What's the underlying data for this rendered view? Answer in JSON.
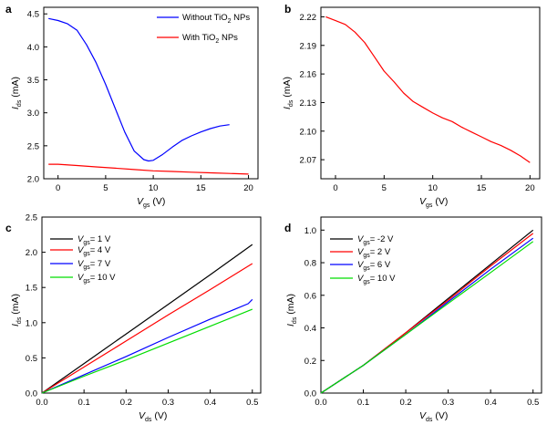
{
  "chart_data": [
    {
      "panel": "a",
      "type": "line",
      "xlabel": "V_gs (V)",
      "ylabel": "I_ds (mA)",
      "xlim": [
        -1.5,
        21
      ],
      "ylim": [
        2.0,
        4.6
      ],
      "xticks": [
        0,
        5,
        10,
        15,
        20
      ],
      "yticks": [
        2.0,
        2.5,
        3.0,
        3.5,
        4.0,
        4.5
      ],
      "legend": "top-right",
      "series": [
        {
          "name": "Without TiO2 NPs",
          "color": "#0000ff",
          "x": [
            -1,
            0,
            1,
            2,
            3,
            4,
            5,
            6,
            7,
            8,
            9,
            9.5,
            10,
            11,
            12,
            13,
            14,
            15,
            16,
            17,
            18
          ],
          "y": [
            4.43,
            4.4,
            4.35,
            4.25,
            4.03,
            3.76,
            3.43,
            3.07,
            2.71,
            2.42,
            2.29,
            2.27,
            2.28,
            2.37,
            2.48,
            2.58,
            2.65,
            2.71,
            2.76,
            2.8,
            2.82
          ]
        },
        {
          "name": "With TiO2 NPs",
          "color": "#ff0000",
          "x": [
            -1,
            0,
            2,
            4,
            6,
            8,
            10,
            12,
            14,
            16,
            18,
            20
          ],
          "y": [
            2.22,
            2.22,
            2.2,
            2.18,
            2.16,
            2.14,
            2.12,
            2.11,
            2.1,
            2.09,
            2.08,
            2.07
          ]
        }
      ]
    },
    {
      "panel": "b",
      "type": "line",
      "xlabel": "V_gs (V)",
      "ylabel": "I_ds (mA)",
      "xlim": [
        -1.5,
        21
      ],
      "ylim": [
        2.05,
        2.23
      ],
      "xticks": [
        0,
        5,
        10,
        15,
        20
      ],
      "yticks": [
        2.07,
        2.1,
        2.13,
        2.16,
        2.19,
        2.22
      ],
      "series": [
        {
          "color": "#ff0000",
          "x": [
            -1,
            0,
            1,
            2,
            3,
            4,
            5,
            6,
            7,
            8,
            9,
            10,
            11,
            12,
            13,
            14,
            15,
            16,
            17,
            18,
            19,
            20
          ],
          "y": [
            2.22,
            2.216,
            2.212,
            2.204,
            2.193,
            2.178,
            2.163,
            2.152,
            2.14,
            2.131,
            2.125,
            2.119,
            2.114,
            2.11,
            2.104,
            2.099,
            2.094,
            2.089,
            2.085,
            2.08,
            2.074,
            2.067
          ]
        }
      ]
    },
    {
      "panel": "c",
      "type": "line",
      "xlabel": "V_ds (V)",
      "ylabel": "I_ds (mA)",
      "xlim": [
        0,
        0.52
      ],
      "ylim": [
        0,
        2.5
      ],
      "xticks": [
        0.0,
        0.1,
        0.2,
        0.3,
        0.4,
        0.5
      ],
      "yticks": [
        0.0,
        0.5,
        1.0,
        1.5,
        2.0,
        2.5
      ],
      "legend": "top-left",
      "series": [
        {
          "name": "V_gs = 1 V",
          "color": "#000000",
          "x": [
            0,
            0.1,
            0.2,
            0.3,
            0.4,
            0.5
          ],
          "y": [
            0,
            0.42,
            0.84,
            1.26,
            1.68,
            2.11
          ]
        },
        {
          "name": "V_gs = 4 V",
          "color": "#ff0000",
          "x": [
            0,
            0.1,
            0.2,
            0.3,
            0.4,
            0.5
          ],
          "y": [
            0,
            0.37,
            0.74,
            1.11,
            1.47,
            1.84
          ]
        },
        {
          "name": "V_gs = 7 V",
          "color": "#0000ff",
          "x": [
            0,
            0.1,
            0.2,
            0.3,
            0.4,
            0.45,
            0.49,
            0.5
          ],
          "y": [
            0,
            0.26,
            0.52,
            0.79,
            1.05,
            1.17,
            1.27,
            1.33
          ]
        },
        {
          "name": "V_gs = 10 V",
          "color": "#00dd00",
          "x": [
            0,
            0.1,
            0.2,
            0.3,
            0.4,
            0.5
          ],
          "y": [
            0,
            0.24,
            0.47,
            0.71,
            0.95,
            1.19
          ]
        }
      ]
    },
    {
      "panel": "d",
      "type": "line",
      "xlabel": "V_ds (V)",
      "ylabel": "I_ds (mA)",
      "xlim": [
        0,
        0.52
      ],
      "ylim": [
        0,
        1.08
      ],
      "xticks": [
        0.0,
        0.1,
        0.2,
        0.3,
        0.4,
        0.5
      ],
      "yticks": [
        0.0,
        0.2,
        0.4,
        0.6,
        0.8,
        1.0
      ],
      "legend": "top-left",
      "series": [
        {
          "name": "V_gs = -2 V",
          "color": "#000000",
          "x": [
            0,
            0.1,
            0.2,
            0.3,
            0.4,
            0.5
          ],
          "y": [
            0,
            0.17,
            0.37,
            0.58,
            0.79,
            1.0
          ]
        },
        {
          "name": "V_gs = 2 V",
          "color": "#ff0000",
          "x": [
            0,
            0.1,
            0.2,
            0.3,
            0.4,
            0.5
          ],
          "y": [
            0,
            0.17,
            0.37,
            0.57,
            0.78,
            0.98
          ]
        },
        {
          "name": "V_gs = 6 V",
          "color": "#0000ff",
          "x": [
            0,
            0.1,
            0.2,
            0.3,
            0.4,
            0.5
          ],
          "y": [
            0,
            0.17,
            0.36,
            0.56,
            0.76,
            0.95
          ]
        },
        {
          "name": "V_gs = 10 V",
          "color": "#00dd00",
          "x": [
            0,
            0.1,
            0.2,
            0.3,
            0.4,
            0.5
          ],
          "y": [
            0,
            0.17,
            0.36,
            0.55,
            0.74,
            0.93
          ]
        }
      ]
    }
  ],
  "panels": {
    "a": {
      "letter": "a",
      "legend": [
        "Without TiO",
        "NPs",
        "With TiO",
        "NPs"
      ],
      "legend_sub": "2"
    },
    "b": {
      "letter": "b"
    },
    "c": {
      "letter": "c",
      "legend": [
        "= 1 V",
        "= 4 V",
        "= 7 V",
        "= 10 V"
      ]
    },
    "d": {
      "letter": "d",
      "legend": [
        "= -2 V",
        "= 2 V",
        "= 6 V",
        "= 10 V"
      ]
    }
  },
  "labels": {
    "I": "I",
    "V": "V",
    "ds": "ds",
    "gs": "gs",
    "unit_mA": "(mA)",
    "unit_V": "(V)"
  }
}
